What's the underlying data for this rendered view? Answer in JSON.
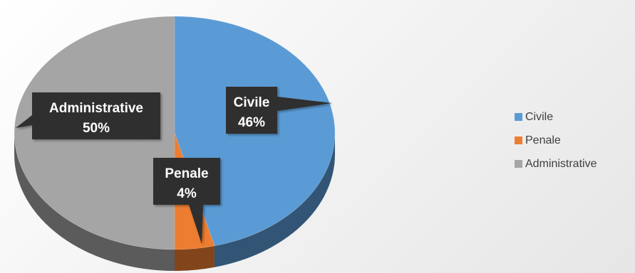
{
  "chart_data": {
    "type": "pie",
    "style": "3d",
    "title": "",
    "categories": [
      "Civile",
      "Penale",
      "Administrative"
    ],
    "values": [
      46,
      4,
      50
    ],
    "data_labels": [
      {
        "name": "Civile",
        "percent": "46%"
      },
      {
        "name": "Penale",
        "percent": "4%"
      },
      {
        "name": "Administrative",
        "percent": "50%"
      }
    ],
    "colors": [
      "#5b9bd5",
      "#ed7d31",
      "#a5a5a5"
    ],
    "legend": {
      "position": "right",
      "items": [
        {
          "label": "Civile",
          "color": "#5b9bd5"
        },
        {
          "label": "Penale",
          "color": "#ed7d31"
        },
        {
          "label": "Administrative",
          "color": "#a5a5a5"
        }
      ]
    }
  }
}
